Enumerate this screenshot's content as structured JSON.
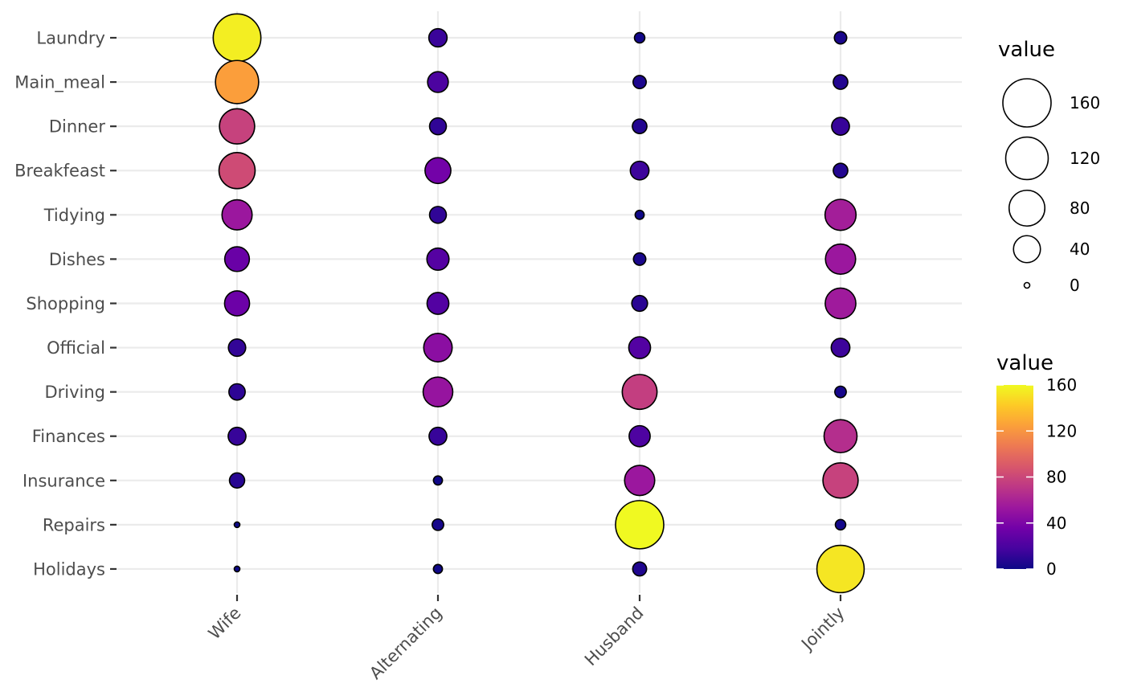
{
  "chart_data": {
    "type": "scatter",
    "categories_x": [
      "Wife",
      "Alternating",
      "Husband",
      "Jointly"
    ],
    "categories_y": [
      "Laundry",
      "Main_meal",
      "Dinner",
      "Breakfeast",
      "Tidying",
      "Dishes",
      "Shopping",
      "Official",
      "Driving",
      "Finances",
      "Insurance",
      "Repairs",
      "Holidays"
    ],
    "values": [
      [
        156,
        14,
        2,
        4
      ],
      [
        124,
        20,
        5,
        7
      ],
      [
        77,
        11,
        7,
        13
      ],
      [
        82,
        36,
        15,
        7
      ],
      [
        53,
        11,
        1,
        57
      ],
      [
        32,
        24,
        4,
        53
      ],
      [
        33,
        23,
        9,
        55
      ],
      [
        12,
        46,
        23,
        15
      ],
      [
        10,
        51,
        75,
        3
      ],
      [
        13,
        13,
        21,
        66
      ],
      [
        8,
        1,
        53,
        77
      ],
      [
        0,
        3,
        160,
        2
      ],
      [
        0,
        1,
        6,
        153
      ]
    ],
    "size_legend": {
      "title": "value",
      "breaks": [
        160,
        120,
        80,
        40,
        0
      ]
    },
    "color_legend": {
      "title": "value",
      "breaks": [
        160,
        120,
        80,
        40,
        0
      ],
      "range": [
        0,
        160
      ],
      "palette": [
        "#0d0887",
        "#46039f",
        "#7201a8",
        "#9c179e",
        "#bd3786",
        "#d8576b",
        "#ed7953",
        "#fb9f3a",
        "#fdca26",
        "#f0f921"
      ]
    },
    "grid": true
  }
}
